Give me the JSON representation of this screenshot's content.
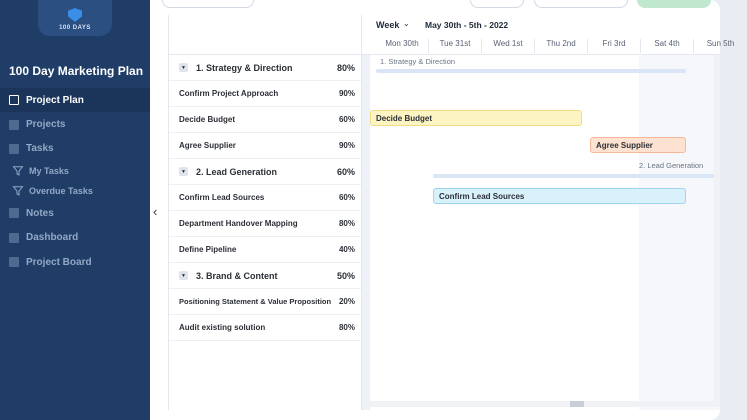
{
  "sidebar": {
    "logo_text": "100 DAYS",
    "plan_title": "100 Day Marketing Plan",
    "items": [
      {
        "label": "Project Plan",
        "icon": "project-plan-icon",
        "active": true
      },
      {
        "label": "Projects",
        "icon": "projects-icon"
      },
      {
        "label": "Tasks",
        "icon": "tasks-icon"
      },
      {
        "label": "My Tasks",
        "icon": "funnel-icon"
      },
      {
        "label": "Overdue Tasks",
        "icon": "funnel-icon"
      },
      {
        "label": "Notes",
        "icon": "notes-icon"
      },
      {
        "label": "Dashboard",
        "icon": "dashboard-icon"
      },
      {
        "label": "Project Board",
        "icon": "project-board-icon"
      }
    ]
  },
  "collapse_glyph": "‹",
  "tasks": [
    {
      "name": "1. Strategy & Direction",
      "pct": "80%",
      "group": true,
      "toggle": "▼"
    },
    {
      "name": "Confirm Project Approach",
      "pct": "90%"
    },
    {
      "name": "Decide Budget",
      "pct": "60%"
    },
    {
      "name": "Agree Supplier",
      "pct": "90%"
    },
    {
      "name": "2. Lead Generation",
      "pct": "60%",
      "group": true,
      "toggle": "▼"
    },
    {
      "name": "Confirm Lead Sources",
      "pct": "60%"
    },
    {
      "name": "Department Handover Mapping",
      "pct": "80%"
    },
    {
      "name": "Define Pipeline",
      "pct": "40%"
    },
    {
      "name": "3. Brand & Content",
      "pct": "50%",
      "group": true,
      "toggle": "▼"
    },
    {
      "name": "Positioning Statement & Value Proposition",
      "pct": "20%"
    },
    {
      "name": "Audit existing solution",
      "pct": "80%"
    }
  ],
  "gantt": {
    "week_label": "Week",
    "week_chevron": "⌄",
    "range_label": "May 30th - 5th - 2022",
    "days": [
      "Mon 30th",
      "Tue 31st",
      "Wed 1st",
      "Thu 2nd",
      "Fri 3rd",
      "Sat 4th",
      "Sun 5th"
    ],
    "group_labels": {
      "strategy": "1. Strategy & Direction",
      "lead": "2. Lead Generation"
    },
    "bars": {
      "decide_budget": "Decide Budget",
      "agree_supplier": "Agree Supplier",
      "confirm_lead_sources": "Confirm Lead Sources"
    }
  }
}
